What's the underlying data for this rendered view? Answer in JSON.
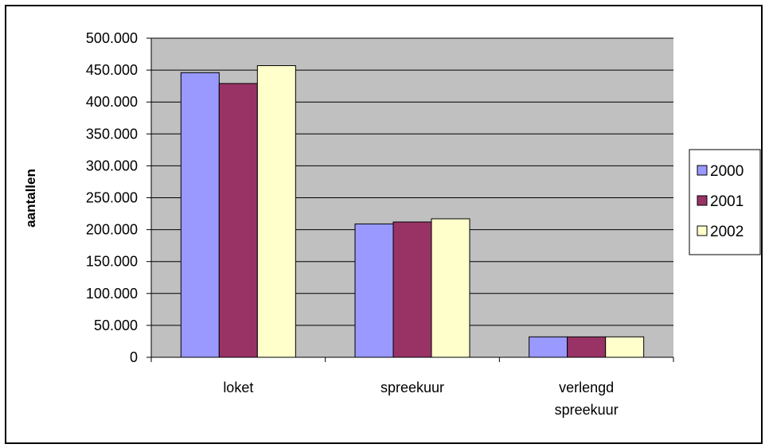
{
  "chart_data": {
    "type": "bar",
    "title": "",
    "xlabel": "",
    "ylabel": "aantallen",
    "ylim": [
      0,
      500000
    ],
    "yticks": [
      {
        "value": 0,
        "label": "0"
      },
      {
        "value": 50000,
        "label": "50.000"
      },
      {
        "value": 100000,
        "label": "100.000"
      },
      {
        "value": 150000,
        "label": "150.000"
      },
      {
        "value": 200000,
        "label": "200.000"
      },
      {
        "value": 250000,
        "label": "250.000"
      },
      {
        "value": 300000,
        "label": "300.000"
      },
      {
        "value": 350000,
        "label": "350.000"
      },
      {
        "value": 400000,
        "label": "400.000"
      },
      {
        "value": 450000,
        "label": "450.000"
      },
      {
        "value": 500000,
        "label": "500.000"
      }
    ],
    "categories": [
      "loket",
      "spreekuur",
      "verlengd spreekuur"
    ],
    "category_label_lines": [
      [
        "loket"
      ],
      [
        "spreekuur"
      ],
      [
        "verlengd",
        "spreekuur"
      ]
    ],
    "series": [
      {
        "name": "2000",
        "color": "#9999ff",
        "values": [
          446000,
          209000,
          32000
        ]
      },
      {
        "name": "2001",
        "color": "#993366",
        "values": [
          429000,
          212000,
          32000
        ]
      },
      {
        "name": "2002",
        "color": "#ffffcc",
        "values": [
          457000,
          217000,
          32000
        ]
      }
    ],
    "plot_background": "#c0c0c0",
    "gridlines": true,
    "legend_position": "right"
  }
}
